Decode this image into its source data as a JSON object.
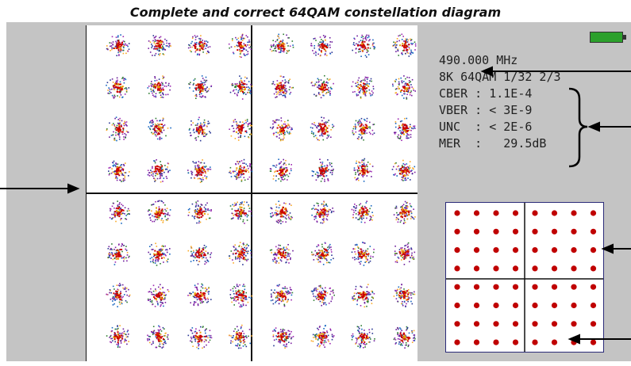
{
  "caption": "Complete and correct 64QAM constellation diagram",
  "readout": {
    "frequency": "490.000 MHz",
    "mode": "8K 64QAM 1/32 2/3",
    "cber": "CBER : 1.1E-4",
    "vber": "VBER : < 3E-9",
    "unc": "UNC  : < 2E-6",
    "mer": "MER  :   29.5dB"
  },
  "colors": {
    "analyzer_bg": "#c4c4c4",
    "constellation_center": "#cc0000",
    "battery": "#2ca02c"
  },
  "constellation": {
    "type": "64QAM",
    "grid": 8
  },
  "icons": {
    "battery": "battery-icon"
  }
}
